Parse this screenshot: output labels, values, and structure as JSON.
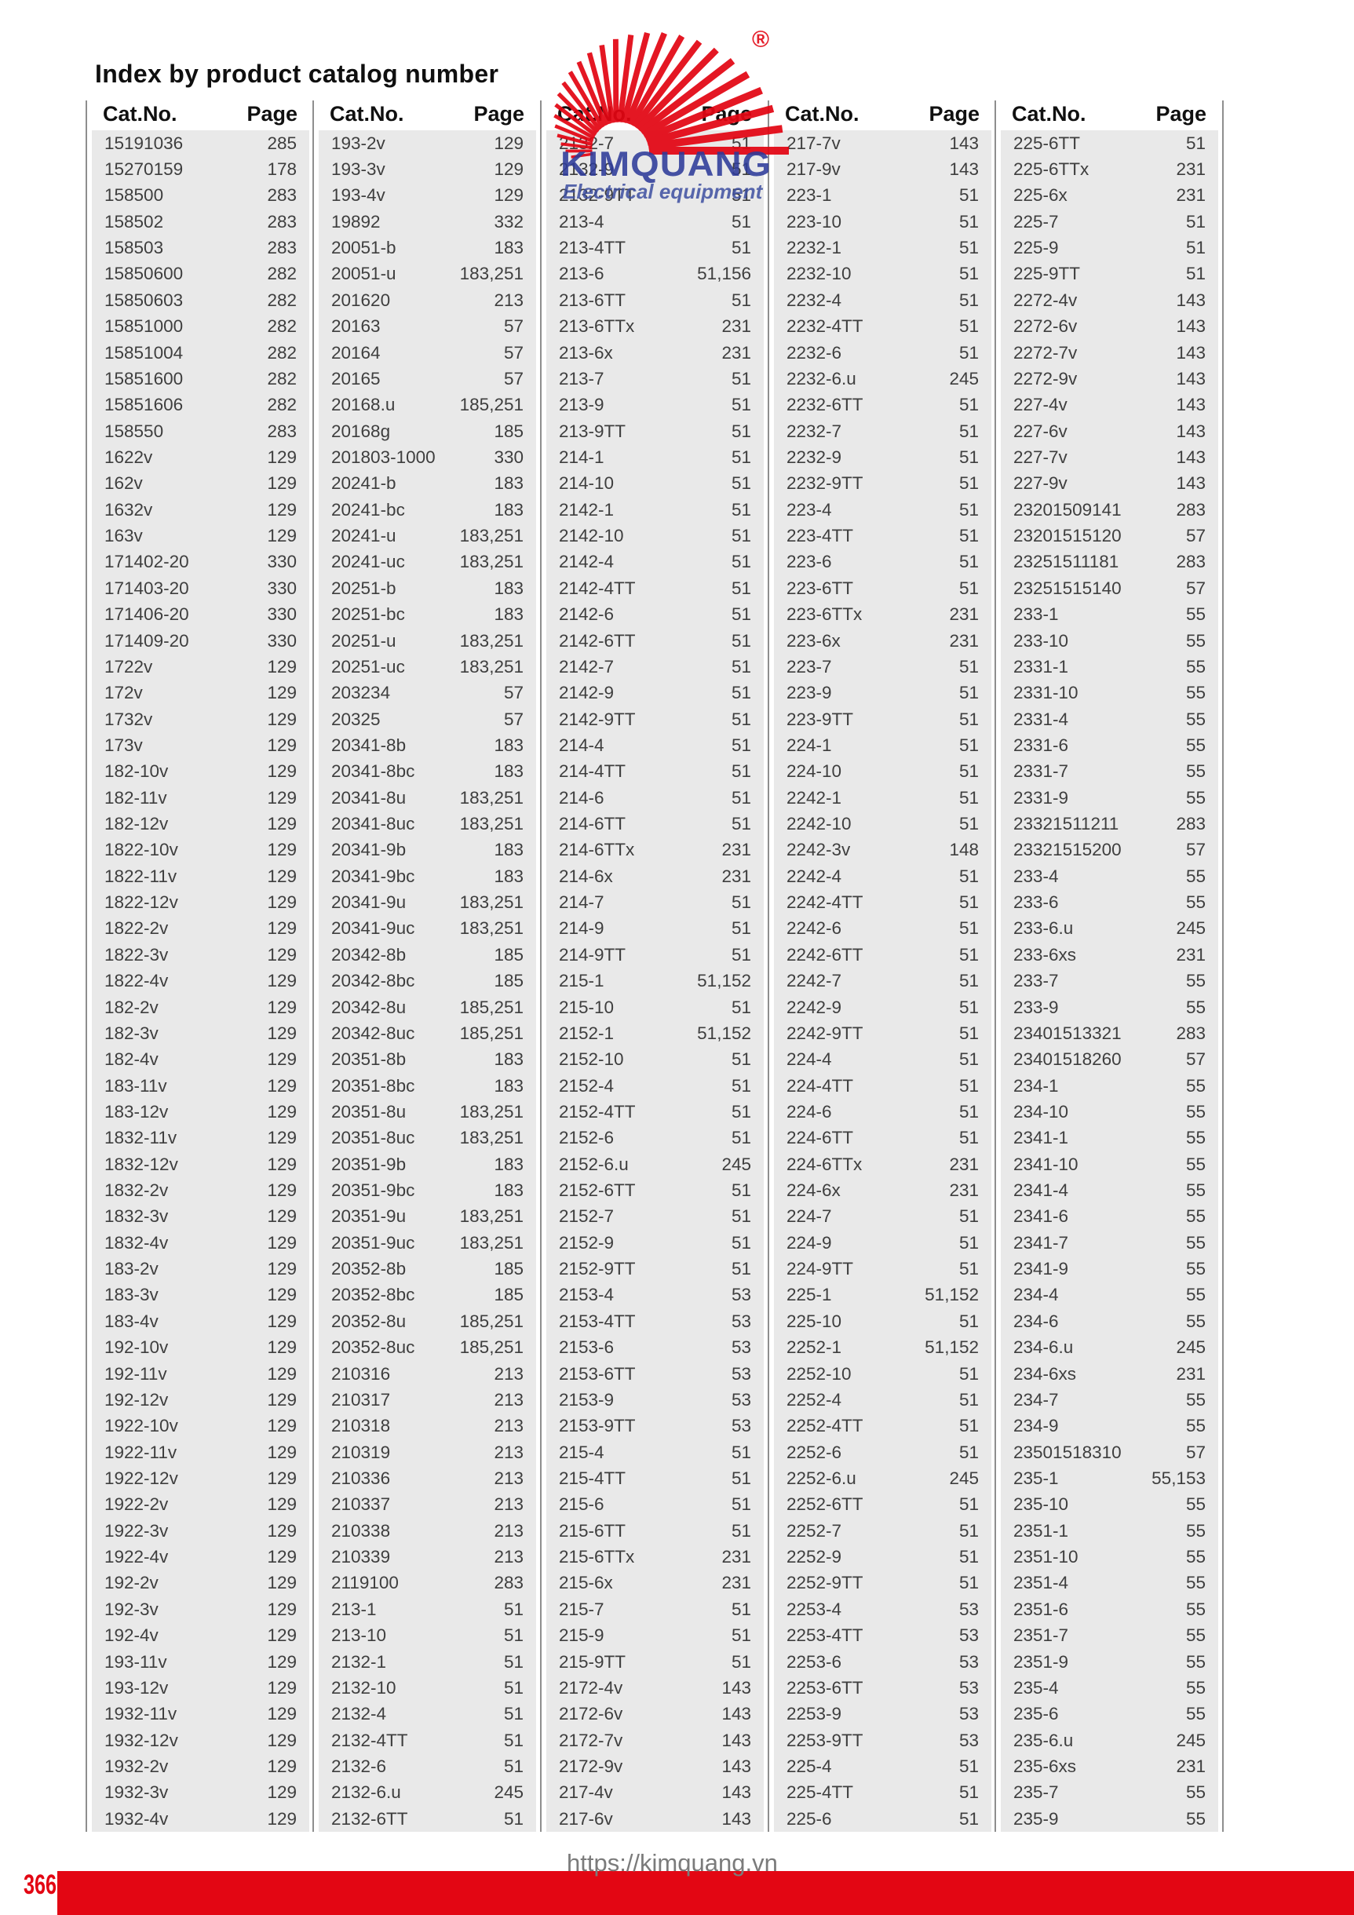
{
  "page": {
    "title": "Index by product catalog number"
  },
  "logo": {
    "name": "KIMQUANG",
    "subtitle": "Electrical equipment",
    "registered_mark": "®"
  },
  "footer": {
    "page_number": "366",
    "url": "https://kimquang.vn"
  },
  "colors": {
    "accent_red": "#e30613",
    "logo_blue": "#2e3b9a",
    "band_gray": "#e9e9e9"
  },
  "table": {
    "headers": {
      "cat": "Cat.No.",
      "page": "Page"
    },
    "columns": [
      [
        [
          "15191036",
          "285"
        ],
        [
          "15270159",
          "178"
        ],
        [
          "158500",
          "283"
        ],
        [
          "158502",
          "283"
        ],
        [
          "158503",
          "283"
        ],
        [
          "15850600",
          "282"
        ],
        [
          "15850603",
          "282"
        ],
        [
          "15851000",
          "282"
        ],
        [
          "15851004",
          "282"
        ],
        [
          "15851600",
          "282"
        ],
        [
          "15851606",
          "282"
        ],
        [
          "158550",
          "283"
        ],
        [
          "1622v",
          "129"
        ],
        [
          "162v",
          "129"
        ],
        [
          "1632v",
          "129"
        ],
        [
          "163v",
          "129"
        ],
        [
          "171402-20",
          "330"
        ],
        [
          "171403-20",
          "330"
        ],
        [
          "171406-20",
          "330"
        ],
        [
          "171409-20",
          "330"
        ],
        [
          "1722v",
          "129"
        ],
        [
          "172v",
          "129"
        ],
        [
          "1732v",
          "129"
        ],
        [
          "173v",
          "129"
        ],
        [
          "182-10v",
          "129"
        ],
        [
          "182-11v",
          "129"
        ],
        [
          "182-12v",
          "129"
        ],
        [
          "1822-10v",
          "129"
        ],
        [
          "1822-11v",
          "129"
        ],
        [
          "1822-12v",
          "129"
        ],
        [
          "1822-2v",
          "129"
        ],
        [
          "1822-3v",
          "129"
        ],
        [
          "1822-4v",
          "129"
        ],
        [
          "182-2v",
          "129"
        ],
        [
          "182-3v",
          "129"
        ],
        [
          "182-4v",
          "129"
        ],
        [
          "183-11v",
          "129"
        ],
        [
          "183-12v",
          "129"
        ],
        [
          "1832-11v",
          "129"
        ],
        [
          "1832-12v",
          "129"
        ],
        [
          "1832-2v",
          "129"
        ],
        [
          "1832-3v",
          "129"
        ],
        [
          "1832-4v",
          "129"
        ],
        [
          "183-2v",
          "129"
        ],
        [
          "183-3v",
          "129"
        ],
        [
          "183-4v",
          "129"
        ],
        [
          "192-10v",
          "129"
        ],
        [
          "192-11v",
          "129"
        ],
        [
          "192-12v",
          "129"
        ],
        [
          "1922-10v",
          "129"
        ],
        [
          "1922-11v",
          "129"
        ],
        [
          "1922-12v",
          "129"
        ],
        [
          "1922-2v",
          "129"
        ],
        [
          "1922-3v",
          "129"
        ],
        [
          "1922-4v",
          "129"
        ],
        [
          "192-2v",
          "129"
        ],
        [
          "192-3v",
          "129"
        ],
        [
          "192-4v",
          "129"
        ],
        [
          "193-11v",
          "129"
        ],
        [
          "193-12v",
          "129"
        ],
        [
          "1932-11v",
          "129"
        ],
        [
          "1932-12v",
          "129"
        ],
        [
          "1932-2v",
          "129"
        ],
        [
          "1932-3v",
          "129"
        ],
        [
          "1932-4v",
          "129"
        ]
      ],
      [
        [
          "193-2v",
          "129"
        ],
        [
          "193-3v",
          "129"
        ],
        [
          "193-4v",
          "129"
        ],
        [
          "19892",
          "332"
        ],
        [
          "20051-b",
          "183"
        ],
        [
          "20051-u",
          "183,251"
        ],
        [
          "201620",
          "213"
        ],
        [
          "20163",
          "57"
        ],
        [
          "20164",
          "57"
        ],
        [
          "20165",
          "57"
        ],
        [
          "20168.u",
          "185,251"
        ],
        [
          "20168g",
          "185"
        ],
        [
          "201803-1000",
          "330"
        ],
        [
          "20241-b",
          "183"
        ],
        [
          "20241-bc",
          "183"
        ],
        [
          "20241-u",
          "183,251"
        ],
        [
          "20241-uc",
          "183,251"
        ],
        [
          "20251-b",
          "183"
        ],
        [
          "20251-bc",
          "183"
        ],
        [
          "20251-u",
          "183,251"
        ],
        [
          "20251-uc",
          "183,251"
        ],
        [
          "203234",
          "57"
        ],
        [
          "20325",
          "57"
        ],
        [
          "20341-8b",
          "183"
        ],
        [
          "20341-8bc",
          "183"
        ],
        [
          "20341-8u",
          "183,251"
        ],
        [
          "20341-8uc",
          "183,251"
        ],
        [
          "20341-9b",
          "183"
        ],
        [
          "20341-9bc",
          "183"
        ],
        [
          "20341-9u",
          "183,251"
        ],
        [
          "20341-9uc",
          "183,251"
        ],
        [
          "20342-8b",
          "185"
        ],
        [
          "20342-8bc",
          "185"
        ],
        [
          "20342-8u",
          "185,251"
        ],
        [
          "20342-8uc",
          "185,251"
        ],
        [
          "20351-8b",
          "183"
        ],
        [
          "20351-8bc",
          "183"
        ],
        [
          "20351-8u",
          "183,251"
        ],
        [
          "20351-8uc",
          "183,251"
        ],
        [
          "20351-9b",
          "183"
        ],
        [
          "20351-9bc",
          "183"
        ],
        [
          "20351-9u",
          "183,251"
        ],
        [
          "20351-9uc",
          "183,251"
        ],
        [
          "20352-8b",
          "185"
        ],
        [
          "20352-8bc",
          "185"
        ],
        [
          "20352-8u",
          "185,251"
        ],
        [
          "20352-8uc",
          "185,251"
        ],
        [
          "210316",
          "213"
        ],
        [
          "210317",
          "213"
        ],
        [
          "210318",
          "213"
        ],
        [
          "210319",
          "213"
        ],
        [
          "210336",
          "213"
        ],
        [
          "210337",
          "213"
        ],
        [
          "210338",
          "213"
        ],
        [
          "210339",
          "213"
        ],
        [
          "2119100",
          "283"
        ],
        [
          "213-1",
          "51"
        ],
        [
          "213-10",
          "51"
        ],
        [
          "2132-1",
          "51"
        ],
        [
          "2132-10",
          "51"
        ],
        [
          "2132-4",
          "51"
        ],
        [
          "2132-4TT",
          "51"
        ],
        [
          "2132-6",
          "51"
        ],
        [
          "2132-6.u",
          "245"
        ],
        [
          "2132-6TT",
          "51"
        ]
      ],
      [
        [
          "2132-7",
          "51"
        ],
        [
          "2132-9",
          "51"
        ],
        [
          "2132-9TT",
          "51"
        ],
        [
          "213-4",
          "51"
        ],
        [
          "213-4TT",
          "51"
        ],
        [
          "213-6",
          "51,156"
        ],
        [
          "213-6TT",
          "51"
        ],
        [
          "213-6TTx",
          "231"
        ],
        [
          "213-6x",
          "231"
        ],
        [
          "213-7",
          "51"
        ],
        [
          "213-9",
          "51"
        ],
        [
          "213-9TT",
          "51"
        ],
        [
          "214-1",
          "51"
        ],
        [
          "214-10",
          "51"
        ],
        [
          "2142-1",
          "51"
        ],
        [
          "2142-10",
          "51"
        ],
        [
          "2142-4",
          "51"
        ],
        [
          "2142-4TT",
          "51"
        ],
        [
          "2142-6",
          "51"
        ],
        [
          "2142-6TT",
          "51"
        ],
        [
          "2142-7",
          "51"
        ],
        [
          "2142-9",
          "51"
        ],
        [
          "2142-9TT",
          "51"
        ],
        [
          "214-4",
          "51"
        ],
        [
          "214-4TT",
          "51"
        ],
        [
          "214-6",
          "51"
        ],
        [
          "214-6TT",
          "51"
        ],
        [
          "214-6TTx",
          "231"
        ],
        [
          "214-6x",
          "231"
        ],
        [
          "214-7",
          "51"
        ],
        [
          "214-9",
          "51"
        ],
        [
          "214-9TT",
          "51"
        ],
        [
          "215-1",
          "51,152"
        ],
        [
          "215-10",
          "51"
        ],
        [
          "2152-1",
          "51,152"
        ],
        [
          "2152-10",
          "51"
        ],
        [
          "2152-4",
          "51"
        ],
        [
          "2152-4TT",
          "51"
        ],
        [
          "2152-6",
          "51"
        ],
        [
          "2152-6.u",
          "245"
        ],
        [
          "2152-6TT",
          "51"
        ],
        [
          "2152-7",
          "51"
        ],
        [
          "2152-9",
          "51"
        ],
        [
          "2152-9TT",
          "51"
        ],
        [
          "2153-4",
          "53"
        ],
        [
          "2153-4TT",
          "53"
        ],
        [
          "2153-6",
          "53"
        ],
        [
          "2153-6TT",
          "53"
        ],
        [
          "2153-9",
          "53"
        ],
        [
          "2153-9TT",
          "53"
        ],
        [
          "215-4",
          "51"
        ],
        [
          "215-4TT",
          "51"
        ],
        [
          "215-6",
          "51"
        ],
        [
          "215-6TT",
          "51"
        ],
        [
          "215-6TTx",
          "231"
        ],
        [
          "215-6x",
          "231"
        ],
        [
          "215-7",
          "51"
        ],
        [
          "215-9",
          "51"
        ],
        [
          "215-9TT",
          "51"
        ],
        [
          "2172-4v",
          "143"
        ],
        [
          "2172-6v",
          "143"
        ],
        [
          "2172-7v",
          "143"
        ],
        [
          "2172-9v",
          "143"
        ],
        [
          "217-4v",
          "143"
        ],
        [
          "217-6v",
          "143"
        ]
      ],
      [
        [
          "217-7v",
          "143"
        ],
        [
          "217-9v",
          "143"
        ],
        [
          "223-1",
          "51"
        ],
        [
          "223-10",
          "51"
        ],
        [
          "2232-1",
          "51"
        ],
        [
          "2232-10",
          "51"
        ],
        [
          "2232-4",
          "51"
        ],
        [
          "2232-4TT",
          "51"
        ],
        [
          "2232-6",
          "51"
        ],
        [
          "2232-6.u",
          "245"
        ],
        [
          "2232-6TT",
          "51"
        ],
        [
          "2232-7",
          "51"
        ],
        [
          "2232-9",
          "51"
        ],
        [
          "2232-9TT",
          "51"
        ],
        [
          "223-4",
          "51"
        ],
        [
          "223-4TT",
          "51"
        ],
        [
          "223-6",
          "51"
        ],
        [
          "223-6TT",
          "51"
        ],
        [
          "223-6TTx",
          "231"
        ],
        [
          "223-6x",
          "231"
        ],
        [
          "223-7",
          "51"
        ],
        [
          "223-9",
          "51"
        ],
        [
          "223-9TT",
          "51"
        ],
        [
          "224-1",
          "51"
        ],
        [
          "224-10",
          "51"
        ],
        [
          "2242-1",
          "51"
        ],
        [
          "2242-10",
          "51"
        ],
        [
          "2242-3v",
          "148"
        ],
        [
          "2242-4",
          "51"
        ],
        [
          "2242-4TT",
          "51"
        ],
        [
          "2242-6",
          "51"
        ],
        [
          "2242-6TT",
          "51"
        ],
        [
          "2242-7",
          "51"
        ],
        [
          "2242-9",
          "51"
        ],
        [
          "2242-9TT",
          "51"
        ],
        [
          "224-4",
          "51"
        ],
        [
          "224-4TT",
          "51"
        ],
        [
          "224-6",
          "51"
        ],
        [
          "224-6TT",
          "51"
        ],
        [
          "224-6TTx",
          "231"
        ],
        [
          "224-6x",
          "231"
        ],
        [
          "224-7",
          "51"
        ],
        [
          "224-9",
          "51"
        ],
        [
          "224-9TT",
          "51"
        ],
        [
          "225-1",
          "51,152"
        ],
        [
          "225-10",
          "51"
        ],
        [
          "2252-1",
          "51,152"
        ],
        [
          "2252-10",
          "51"
        ],
        [
          "2252-4",
          "51"
        ],
        [
          "2252-4TT",
          "51"
        ],
        [
          "2252-6",
          "51"
        ],
        [
          "2252-6.u",
          "245"
        ],
        [
          "2252-6TT",
          "51"
        ],
        [
          "2252-7",
          "51"
        ],
        [
          "2252-9",
          "51"
        ],
        [
          "2252-9TT",
          "51"
        ],
        [
          "2253-4",
          "53"
        ],
        [
          "2253-4TT",
          "53"
        ],
        [
          "2253-6",
          "53"
        ],
        [
          "2253-6TT",
          "53"
        ],
        [
          "2253-9",
          "53"
        ],
        [
          "2253-9TT",
          "53"
        ],
        [
          "225-4",
          "51"
        ],
        [
          "225-4TT",
          "51"
        ],
        [
          "225-6",
          "51"
        ]
      ],
      [
        [
          "225-6TT",
          "51"
        ],
        [
          "225-6TTx",
          "231"
        ],
        [
          "225-6x",
          "231"
        ],
        [
          "225-7",
          "51"
        ],
        [
          "225-9",
          "51"
        ],
        [
          "225-9TT",
          "51"
        ],
        [
          "2272-4v",
          "143"
        ],
        [
          "2272-6v",
          "143"
        ],
        [
          "2272-7v",
          "143"
        ],
        [
          "2272-9v",
          "143"
        ],
        [
          "227-4v",
          "143"
        ],
        [
          "227-6v",
          "143"
        ],
        [
          "227-7v",
          "143"
        ],
        [
          "227-9v",
          "143"
        ],
        [
          "23201509141",
          "283"
        ],
        [
          "23201515120",
          "57"
        ],
        [
          "23251511181",
          "283"
        ],
        [
          "23251515140",
          "57"
        ],
        [
          "233-1",
          "55"
        ],
        [
          "233-10",
          "55"
        ],
        [
          "2331-1",
          "55"
        ],
        [
          "2331-10",
          "55"
        ],
        [
          "2331-4",
          "55"
        ],
        [
          "2331-6",
          "55"
        ],
        [
          "2331-7",
          "55"
        ],
        [
          "2331-9",
          "55"
        ],
        [
          "23321511211",
          "283"
        ],
        [
          "23321515200",
          "57"
        ],
        [
          "233-4",
          "55"
        ],
        [
          "233-6",
          "55"
        ],
        [
          "233-6.u",
          "245"
        ],
        [
          "233-6xs",
          "231"
        ],
        [
          "233-7",
          "55"
        ],
        [
          "233-9",
          "55"
        ],
        [
          "23401513321",
          "283"
        ],
        [
          "23401518260",
          "57"
        ],
        [
          "234-1",
          "55"
        ],
        [
          "234-10",
          "55"
        ],
        [
          "2341-1",
          "55"
        ],
        [
          "2341-10",
          "55"
        ],
        [
          "2341-4",
          "55"
        ],
        [
          "2341-6",
          "55"
        ],
        [
          "2341-7",
          "55"
        ],
        [
          "2341-9",
          "55"
        ],
        [
          "234-4",
          "55"
        ],
        [
          "234-6",
          "55"
        ],
        [
          "234-6.u",
          "245"
        ],
        [
          "234-6xs",
          "231"
        ],
        [
          "234-7",
          "55"
        ],
        [
          "234-9",
          "55"
        ],
        [
          "23501518310",
          "57"
        ],
        [
          "235-1",
          "55,153"
        ],
        [
          "235-10",
          "55"
        ],
        [
          "2351-1",
          "55"
        ],
        [
          "2351-10",
          "55"
        ],
        [
          "2351-4",
          "55"
        ],
        [
          "2351-6",
          "55"
        ],
        [
          "2351-7",
          "55"
        ],
        [
          "2351-9",
          "55"
        ],
        [
          "235-4",
          "55"
        ],
        [
          "235-6",
          "55"
        ],
        [
          "235-6.u",
          "245"
        ],
        [
          "235-6xs",
          "231"
        ],
        [
          "235-7",
          "55"
        ],
        [
          "235-9",
          "55"
        ]
      ]
    ]
  }
}
